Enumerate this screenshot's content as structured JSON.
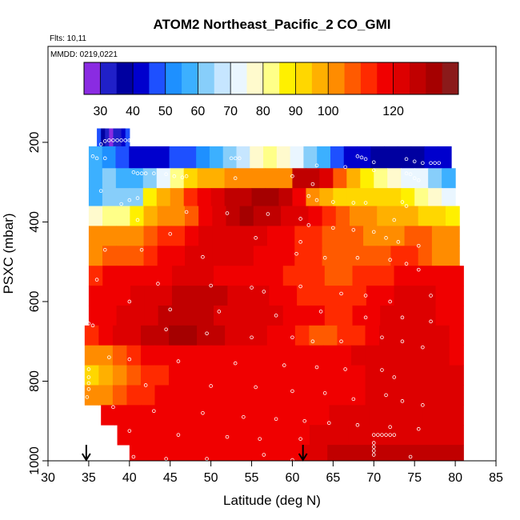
{
  "chart_data": {
    "type": "heatmap",
    "title": "ATOM2 Northeast_Pacific_2 CO_GMI",
    "subtitle_flights": "Flts: 10,11",
    "subtitle_dates": "MMDD: 0219,0221",
    "xlabel": "Latitude (deg N)",
    "ylabel": "PSXC (mbar)",
    "xlim": [
      30,
      85
    ],
    "ylim": [
      1000,
      0
    ],
    "x_ticks": [
      30,
      35,
      40,
      45,
      50,
      55,
      60,
      65,
      70,
      75,
      80,
      85
    ],
    "y_ticks": [
      200,
      400,
      600,
      800,
      1000
    ],
    "colorbar": {
      "range": [
        25,
        140
      ],
      "tick_values": [
        30,
        40,
        50,
        60,
        70,
        80,
        90,
        100,
        120
      ],
      "segment_edges": [
        25,
        30,
        35,
        40,
        45,
        50,
        55,
        60,
        65,
        70,
        75,
        80,
        85,
        90,
        95,
        100,
        105,
        110,
        115,
        120,
        125,
        130,
        135,
        140
      ],
      "colors": [
        "#8a2be2",
        "#2020c8",
        "#0000a0",
        "#0000cd",
        "#1e50ff",
        "#1e90ff",
        "#3cb0ff",
        "#87cefa",
        "#c6e6ff",
        "#eaf6ff",
        "#fffacd",
        "#ffff88",
        "#fff000",
        "#ffd700",
        "#ffb000",
        "#ff8c00",
        "#ff5a00",
        "#ff2a00",
        "#f00000",
        "#dd0000",
        "#c00000",
        "#a50000",
        "#8b1a1a"
      ]
    },
    "arrows_at_latitude": [
      34.7,
      61.3
    ],
    "layers": [
      {
        "p_top": 165,
        "p_bot": 210,
        "lat_start": 36.0,
        "lat_end": 40.0,
        "values": [
          45,
          38,
          30,
          28,
          30,
          34,
          40,
          45
        ]
      },
      {
        "p_top": 210,
        "p_bot": 265,
        "lat_start": 35.0,
        "lat_end": 79.5,
        "values": [
          55,
          50,
          45,
          42,
          40,
          42,
          45,
          48,
          52,
          55,
          62,
          68,
          75,
          80,
          78,
          72,
          62,
          55,
          48,
          42,
          40,
          38,
          38,
          37,
          38,
          40,
          42
        ]
      },
      {
        "p_top": 265,
        "p_bot": 315,
        "lat_start": 35.0,
        "lat_end": 80.0,
        "values": [
          55,
          60,
          58,
          55,
          62,
          72,
          82,
          90,
          95,
          98,
          100,
          102,
          103,
          102,
          100,
          125,
          125,
          120,
          105,
          95,
          88,
          80,
          75,
          72,
          70,
          62,
          58
        ]
      },
      {
        "p_top": 315,
        "p_bot": 360,
        "lat_start": 35.0,
        "lat_end": 80.0,
        "values": [
          58,
          60,
          60,
          62,
          88,
          95,
          100,
          112,
          118,
          122,
          125,
          128,
          130,
          130,
          128,
          115,
          102,
          96,
          92,
          90,
          90,
          92,
          90,
          88,
          80,
          75,
          70
        ]
      },
      {
        "p_top": 360,
        "p_bot": 410,
        "lat_start": 35.0,
        "lat_end": 80.5,
        "values": [
          75,
          80,
          82,
          85,
          95,
          100,
          102,
          108,
          118,
          124,
          128,
          130,
          128,
          125,
          122,
          120,
          116,
          112,
          108,
          104,
          100,
          98,
          96,
          95,
          92,
          90,
          88
        ]
      },
      {
        "p_top": 410,
        "p_bot": 460,
        "lat_start": 35.0,
        "lat_end": 80.5,
        "values": [
          100,
          102,
          103,
          104,
          106,
          110,
          114,
          118,
          120,
          122,
          124,
          124,
          120,
          118,
          115,
          112,
          110,
          108,
          106,
          105,
          104,
          103,
          104,
          105,
          106,
          102,
          100
        ]
      },
      {
        "p_top": 460,
        "p_bot": 510,
        "lat_start": 35.0,
        "lat_end": 80.5,
        "values": [
          104,
          105,
          106,
          108,
          112,
          116,
          118,
          120,
          122,
          122,
          122,
          120,
          118,
          116,
          115,
          112,
          110,
          108,
          106,
          106,
          106,
          108,
          110,
          110,
          106,
          104,
          102
        ]
      },
      {
        "p_top": 510,
        "p_bot": 560,
        "lat_start": 35.0,
        "lat_end": 81.0,
        "values": [
          114,
          115,
          116,
          118,
          118,
          119,
          120,
          120,
          120,
          119,
          118,
          118,
          117,
          116,
          114,
          112,
          110,
          108,
          108,
          110,
          112,
          114,
          115,
          116,
          117,
          118,
          118
        ]
      },
      {
        "p_top": 560,
        "p_bot": 610,
        "lat_start": 35.0,
        "lat_end": 81.0,
        "values": [
          116,
          117,
          118,
          120,
          122,
          124,
          126,
          128,
          128,
          126,
          124,
          122,
          120,
          118,
          116,
          112,
          110,
          110,
          112,
          114,
          116,
          118,
          120,
          121,
          120,
          118,
          117
        ]
      },
      {
        "p_top": 610,
        "p_bot": 660,
        "lat_start": 35.0,
        "lat_end": 81.0,
        "values": [
          118,
          119,
          120,
          122,
          124,
          125,
          126,
          126,
          125,
          124,
          123,
          122,
          121,
          120,
          119,
          118,
          116,
          114,
          114,
          116,
          118,
          120,
          122,
          122,
          120,
          119,
          118
        ]
      },
      {
        "p_top": 660,
        "p_bot": 710,
        "lat_start": 34.5,
        "lat_end": 81.0,
        "values": [
          112,
          116,
          120,
          124,
          126,
          128,
          130,
          130,
          128,
          126,
          124,
          122,
          120,
          118,
          115,
          110,
          108,
          108,
          110,
          114,
          118,
          120,
          122,
          122,
          121,
          120,
          118
        ]
      },
      {
        "p_top": 710,
        "p_bot": 760,
        "lat_start": 34.5,
        "lat_end": 81.0,
        "values": [
          100,
          104,
          108,
          112,
          116,
          118,
          118,
          118,
          118,
          118,
          118,
          118,
          118,
          118,
          118,
          118,
          118,
          118,
          119,
          120,
          120,
          121,
          121,
          121,
          120,
          120,
          119
        ]
      },
      {
        "p_top": 760,
        "p_bot": 810,
        "lat_start": 34.5,
        "lat_end": 81.0,
        "values": [
          92,
          96,
          102,
          108,
          112,
          114,
          116,
          116,
          117,
          117,
          117,
          118,
          118,
          118,
          118,
          118,
          118,
          118,
          118,
          119,
          120,
          120,
          120,
          120,
          120,
          120,
          120
        ]
      },
      {
        "p_top": 810,
        "p_bot": 860,
        "lat_start": 34.5,
        "lat_end": 81.0,
        "values": [
          100,
          104,
          108,
          112,
          114,
          116,
          116,
          117,
          117,
          118,
          118,
          118,
          118,
          118,
          118,
          119,
          119,
          119,
          119,
          119,
          120,
          120,
          120,
          120,
          120,
          120,
          120
        ]
      },
      {
        "p_top": 860,
        "p_bot": 910,
        "lat_start": 36.5,
        "lat_end": 81.0,
        "values": [
          118,
          118,
          118,
          118,
          118,
          118,
          118,
          118,
          118,
          118,
          118,
          118,
          118,
          118,
          118,
          119,
          119,
          120,
          120,
          120,
          120,
          121,
          121,
          121,
          121,
          121,
          121
        ]
      },
      {
        "p_top": 910,
        "p_bot": 960,
        "lat_start": 38.5,
        "lat_end": 81.0,
        "values": [
          118,
          118,
          118,
          118,
          118,
          118,
          118,
          118,
          118,
          118,
          118,
          118,
          118,
          118,
          119,
          120,
          121,
          122,
          122,
          122,
          122,
          122,
          122,
          122,
          122,
          122,
          122
        ]
      },
      {
        "p_top": 960,
        "p_bot": 1000,
        "lat_start": 40.0,
        "lat_end": 81.0,
        "values": [
          118,
          118,
          118,
          118,
          118,
          118,
          118,
          118,
          118,
          118,
          118,
          118,
          118,
          118,
          120,
          124,
          125,
          125,
          125,
          125,
          125,
          125,
          125,
          125,
          125,
          125,
          125
        ]
      }
    ],
    "flight_points": [
      [
        37.5,
        195
      ],
      [
        38.0,
        195
      ],
      [
        38.5,
        195
      ],
      [
        39.0,
        195
      ],
      [
        39.5,
        195
      ],
      [
        40.0,
        195
      ],
      [
        37.0,
        197
      ],
      [
        36.5,
        205
      ],
      [
        40.2,
        195
      ],
      [
        35.5,
        235
      ],
      [
        36.0,
        240
      ],
      [
        37.0,
        240
      ],
      [
        52.5,
        240
      ],
      [
        53.0,
        240
      ],
      [
        53.5,
        240
      ],
      [
        68.0,
        235
      ],
      [
        68.5,
        238
      ],
      [
        69.0,
        242
      ],
      [
        70.0,
        250
      ],
      [
        74.0,
        242
      ],
      [
        75.0,
        248
      ],
      [
        76.0,
        252
      ],
      [
        77.0,
        252
      ],
      [
        77.5,
        252
      ],
      [
        78.0,
        252
      ],
      [
        70.0,
        270
      ],
      [
        66.5,
        262
      ],
      [
        63.0,
        258
      ],
      [
        40.5,
        275
      ],
      [
        41.0,
        278
      ],
      [
        41.5,
        278
      ],
      [
        42.0,
        278
      ],
      [
        43.0,
        278
      ],
      [
        44.5,
        280
      ],
      [
        45.5,
        285
      ],
      [
        46.5,
        288
      ],
      [
        47.0,
        285
      ],
      [
        53.0,
        290
      ],
      [
        60.0,
        285
      ],
      [
        74.0,
        278
      ],
      [
        74.5,
        280
      ],
      [
        75.0,
        290
      ],
      [
        75.5,
        295
      ],
      [
        62.5,
        305
      ],
      [
        36.5,
        322
      ],
      [
        39.0,
        355
      ],
      [
        40.0,
        345
      ],
      [
        41.0,
        340
      ],
      [
        62.0,
        335
      ],
      [
        63.0,
        345
      ],
      [
        65.0,
        350
      ],
      [
        67.5,
        352
      ],
      [
        69.0,
        352
      ],
      [
        73.5,
        350
      ],
      [
        74.0,
        360
      ],
      [
        47.0,
        375
      ],
      [
        52.0,
        378
      ],
      [
        57.0,
        380
      ],
      [
        61.0,
        392
      ],
      [
        72.5,
        395
      ],
      [
        41.0,
        395
      ],
      [
        45.0,
        430
      ],
      [
        55.5,
        440
      ],
      [
        61.0,
        450
      ],
      [
        62.0,
        408
      ],
      [
        65.0,
        415
      ],
      [
        67.5,
        420
      ],
      [
        70.0,
        425
      ],
      [
        71.5,
        440
      ],
      [
        73.0,
        450
      ],
      [
        75.5,
        460
      ],
      [
        37.0,
        470
      ],
      [
        41.5,
        470
      ],
      [
        49.0,
        488
      ],
      [
        60.5,
        480
      ],
      [
        64.0,
        490
      ],
      [
        68.0,
        490
      ],
      [
        72.0,
        495
      ],
      [
        74.0,
        505
      ],
      [
        75.5,
        520
      ],
      [
        36.0,
        545
      ],
      [
        43.5,
        555
      ],
      [
        50.0,
        560
      ],
      [
        55.0,
        565
      ],
      [
        56.5,
        575
      ],
      [
        61.0,
        562
      ],
      [
        66.0,
        580
      ],
      [
        69.0,
        585
      ],
      [
        72.0,
        600
      ],
      [
        77.0,
        585
      ],
      [
        40.0,
        600
      ],
      [
        45.0,
        620
      ],
      [
        51.0,
        625
      ],
      [
        58.0,
        635
      ],
      [
        63.5,
        625
      ],
      [
        69.0,
        640
      ],
      [
        73.5,
        640
      ],
      [
        77.0,
        650
      ],
      [
        35.0,
        655
      ],
      [
        35.5,
        660
      ],
      [
        44.5,
        670
      ],
      [
        49.5,
        680
      ],
      [
        55.0,
        690
      ],
      [
        60.0,
        690
      ],
      [
        62.5,
        700
      ],
      [
        66.0,
        700
      ],
      [
        71.0,
        690
      ],
      [
        73.5,
        700
      ],
      [
        76.0,
        715
      ],
      [
        37.5,
        740
      ],
      [
        40.0,
        745
      ],
      [
        46.0,
        750
      ],
      [
        53.0,
        755
      ],
      [
        59.0,
        760
      ],
      [
        63.0,
        765
      ],
      [
        66.5,
        770
      ],
      [
        71.0,
        772
      ],
      [
        72.5,
        790
      ],
      [
        35.0,
        770
      ],
      [
        35.0,
        790
      ],
      [
        35.0,
        805
      ],
      [
        35.0,
        820
      ],
      [
        34.8,
        840
      ],
      [
        42.0,
        810
      ],
      [
        50.0,
        812
      ],
      [
        55.5,
        815
      ],
      [
        60.0,
        825
      ],
      [
        64.0,
        830
      ],
      [
        67.5,
        845
      ],
      [
        71.5,
        835
      ],
      [
        73.5,
        850
      ],
      [
        76.0,
        860
      ],
      [
        38.0,
        865
      ],
      [
        43.0,
        875
      ],
      [
        49.0,
        880
      ],
      [
        54.0,
        890
      ],
      [
        58.0,
        895
      ],
      [
        61.5,
        900
      ],
      [
        64.5,
        905
      ],
      [
        68.0,
        910
      ],
      [
        72.0,
        915
      ],
      [
        75.5,
        920
      ],
      [
        40.0,
        925
      ],
      [
        46.0,
        935
      ],
      [
        52.0,
        940
      ],
      [
        56.0,
        945
      ],
      [
        61.0,
        945
      ],
      [
        70.0,
        935
      ],
      [
        70.5,
        935
      ],
      [
        71.0,
        935
      ],
      [
        71.5,
        935
      ],
      [
        72.0,
        935
      ],
      [
        72.5,
        935
      ],
      [
        70.0,
        955
      ],
      [
        70.0,
        965
      ],
      [
        70.0,
        975
      ],
      [
        70.0,
        985
      ],
      [
        40.5,
        990
      ],
      [
        44.5,
        995
      ],
      [
        49.5,
        995
      ],
      [
        56.5,
        985
      ],
      [
        60.0,
        998
      ],
      [
        74.5,
        990
      ]
    ]
  }
}
